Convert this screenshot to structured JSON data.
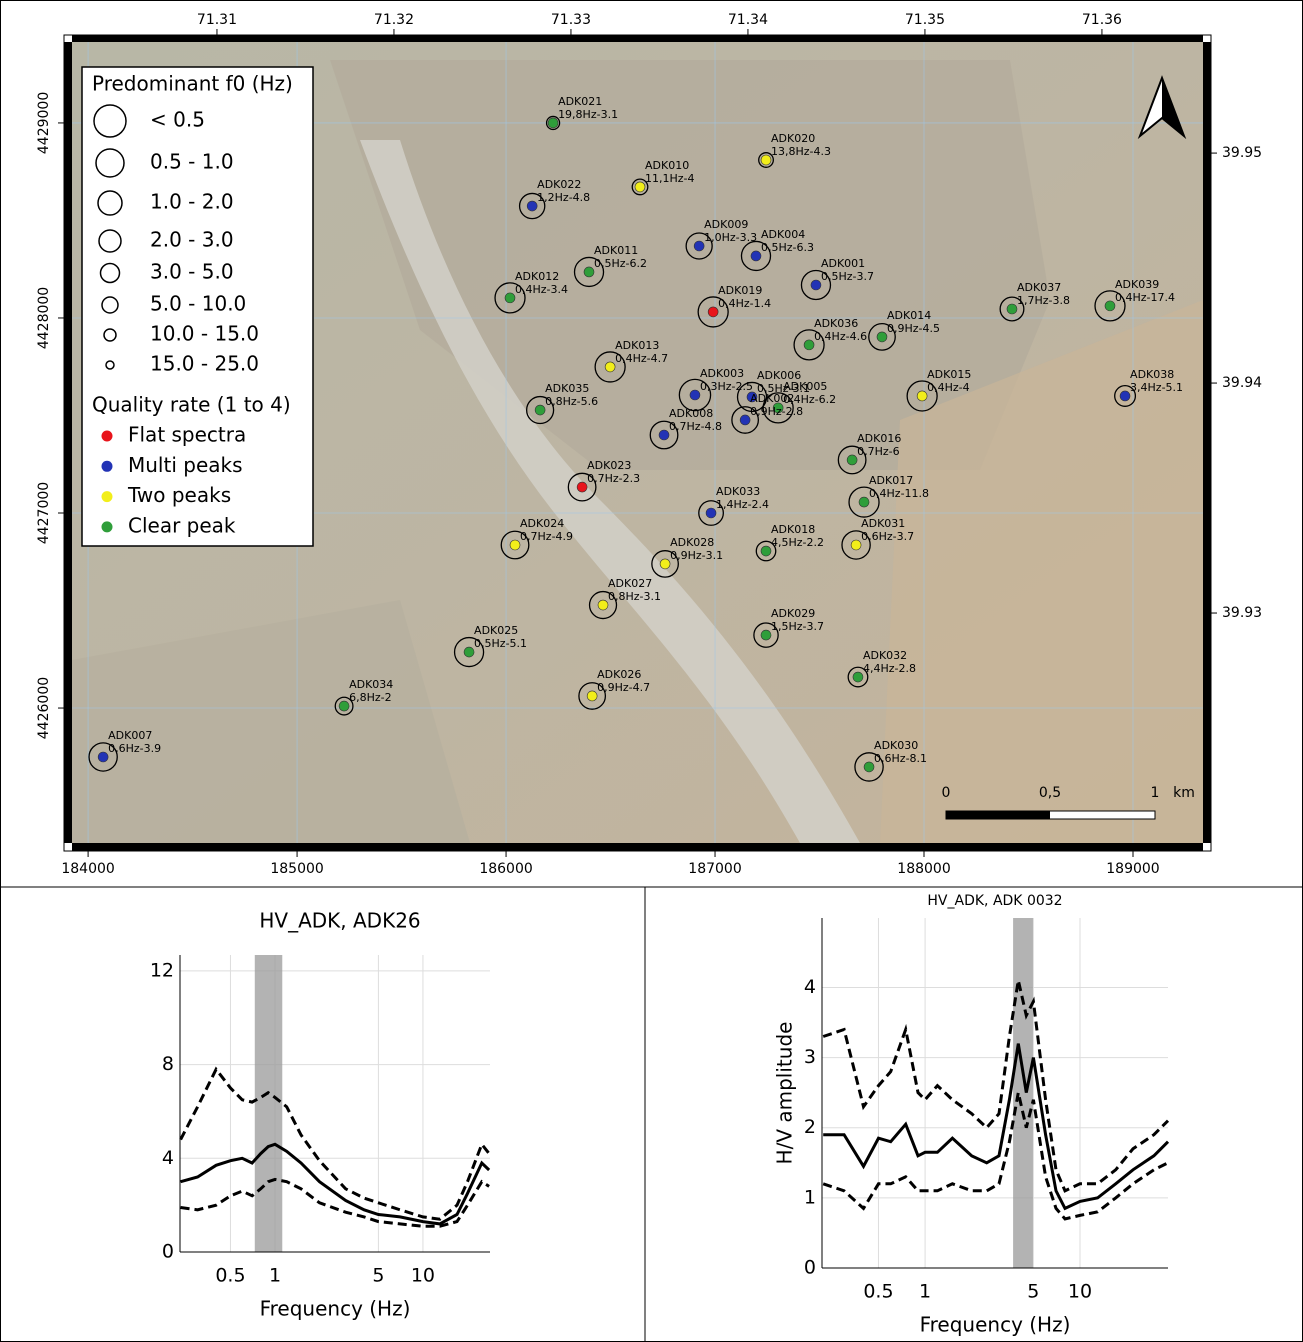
{
  "map": {
    "xlim": [
      183923,
      189335
    ],
    "ylim": [
      4425308,
      4429415
    ],
    "xticks": [
      184000,
      185000,
      186000,
      187000,
      188000,
      189000
    ],
    "yticks": [
      4426000,
      4427000,
      4428000,
      4429000
    ],
    "lonlim": [
      71.30181,
      71.36571
    ],
    "latlim": [
      39.92,
      39.95483
    ],
    "lonticks": [
      71.31,
      71.32,
      71.33,
      71.34,
      71.35,
      71.36
    ],
    "latticks": [
      39.93,
      39.94,
      39.95
    ],
    "legend": {
      "size_title": "Predominant f0 (Hz)",
      "size_classes": [
        "< 0.5",
        "0.5 - 1.0",
        "1.0 - 2.0",
        "2.0 - 3.0",
        "3.0 - 5.0",
        "5.0 - 10.0",
        "10.0 - 15.0",
        "15.0 - 25.0"
      ],
      "quality_title": "Quality rate (1 to 4)",
      "quality": [
        {
          "name": "Flat spectra",
          "color": "#e8141b"
        },
        {
          "name": "Multi peaks",
          "color": "#2233b5"
        },
        {
          "name": "Two peaks",
          "color": "#f2ee1a"
        },
        {
          "name": "Clear peak",
          "color": "#2f9e3a"
        }
      ]
    },
    "scalebar": [
      "0",
      "0,5",
      "1",
      "km"
    ],
    "stations": [
      {
        "name": "ADK021",
        "label": "19,8Hz-3.1",
        "f0": 19.8,
        "x": 186225,
        "y": 4429000,
        "color": "#2f9e3a"
      },
      {
        "name": "ADK020",
        "label": "13,8Hz-4.3",
        "f0": 13.8,
        "x": 187244,
        "y": 4428810,
        "color": "#f2ee1a"
      },
      {
        "name": "ADK010",
        "label": "11,1Hz-4",
        "f0": 11.1,
        "x": 186641,
        "y": 4428672,
        "color": "#f2ee1a"
      },
      {
        "name": "ADK022",
        "label": "1,2Hz-4.8",
        "f0": 1.2,
        "x": 186125,
        "y": 4428574,
        "color": "#2233b5"
      },
      {
        "name": "ADK009",
        "label": "1,0Hz-3.3",
        "f0": 1.0,
        "x": 186924,
        "y": 4428369,
        "color": "#2233b5"
      },
      {
        "name": "ADK004",
        "label": "0,5Hz-6.3",
        "f0": 0.5,
        "x": 187196,
        "y": 4428318,
        "color": "#2233b5"
      },
      {
        "name": "ADK011",
        "label": "0,5Hz-6.2",
        "f0": 0.5,
        "x": 186397,
        "y": 4428236,
        "color": "#2f9e3a"
      },
      {
        "name": "ADK001",
        "label": "0,5Hz-3.7",
        "f0": 0.5,
        "x": 187483,
        "y": 4428169,
        "color": "#2233b5"
      },
      {
        "name": "ADK012",
        "label": "0,4Hz-3.4",
        "f0": 0.4,
        "x": 186019,
        "y": 4428103,
        "color": "#2f9e3a"
      },
      {
        "name": "ADK019",
        "label": "0,4Hz-1.4",
        "f0": 0.4,
        "x": 186991,
        "y": 4428031,
        "color": "#e8141b"
      },
      {
        "name": "ADK037",
        "label": "1,7Hz-3.8",
        "f0": 1.7,
        "x": 188421,
        "y": 4428046,
        "color": "#2f9e3a"
      },
      {
        "name": "ADK039",
        "label": "0,4Hz-17.4",
        "f0": 0.4,
        "x": 188890,
        "y": 4428062,
        "color": "#2f9e3a"
      },
      {
        "name": "ADK014",
        "label": "0,9Hz-4.5",
        "f0": 0.9,
        "x": 187799,
        "y": 4427903,
        "color": "#2f9e3a"
      },
      {
        "name": "ADK036",
        "label": "0,4Hz-4.6",
        "f0": 0.4,
        "x": 187450,
        "y": 4427862,
        "color": "#2f9e3a"
      },
      {
        "name": "ADK013",
        "label": "0,4Hz-4.7",
        "f0": 0.4,
        "x": 186498,
        "y": 4427749,
        "color": "#f2ee1a"
      },
      {
        "name": "ADK038",
        "label": "3,4Hz-5.1",
        "f0": 3.4,
        "x": 188962,
        "y": 4427600,
        "color": "#2233b5"
      },
      {
        "name": "ADK003",
        "label": "0,3Hz-2.5",
        "f0": 0.3,
        "x": 186904,
        "y": 4427605,
        "color": "#2233b5"
      },
      {
        "name": "ADK006",
        "label": "0,5Hz-3.1",
        "f0": 0.5,
        "x": 187177,
        "y": 4427595,
        "color": "#2233b5"
      },
      {
        "name": "ADK005",
        "label": "0,4Hz-6.2",
        "f0": 0.4,
        "x": 187302,
        "y": 4427539,
        "color": "#2f9e3a"
      },
      {
        "name": "ADK015",
        "label": "0,4Hz-4",
        "f0": 0.4,
        "x": 187991,
        "y": 4427600,
        "color": "#f2ee1a"
      },
      {
        "name": "ADK035",
        "label": "0,8Hz-5.6",
        "f0": 0.8,
        "x": 186163,
        "y": 4427528,
        "color": "#2f9e3a"
      },
      {
        "name": "ADK008",
        "label": "0,7Hz-4.8",
        "f0": 0.7,
        "x": 186756,
        "y": 4427400,
        "color": "#2233b5"
      },
      {
        "name": "ADK002",
        "label": "0,9Hz-2.8",
        "f0": 0.9,
        "x": 187144,
        "y": 4427477,
        "color": "#2233b5"
      },
      {
        "name": "ADK016",
        "label": "0,7Hz-6",
        "f0": 0.7,
        "x": 187656,
        "y": 4427272,
        "color": "#2f9e3a"
      },
      {
        "name": "ADK023",
        "label": "0,7Hz-2.3",
        "f0": 0.7,
        "x": 186364,
        "y": 4427133,
        "color": "#e8141b"
      },
      {
        "name": "ADK017",
        "label": "0,4Hz-11.8",
        "f0": 0.4,
        "x": 187713,
        "y": 4427056,
        "color": "#2f9e3a"
      },
      {
        "name": "ADK033",
        "label": "1,4Hz-2.4",
        "f0": 1.4,
        "x": 186981,
        "y": 4427000,
        "color": "#2233b5"
      },
      {
        "name": "ADK024",
        "label": "0,7Hz-4.9",
        "f0": 0.7,
        "x": 186043,
        "y": 4426836,
        "color": "#f2ee1a"
      },
      {
        "name": "ADK018",
        "label": "4,5Hz-2.2",
        "f0": 4.5,
        "x": 187244,
        "y": 4426805,
        "color": "#2f9e3a"
      },
      {
        "name": "ADK031",
        "label": "0,6Hz-3.7",
        "f0": 0.6,
        "x": 187675,
        "y": 4426836,
        "color": "#f2ee1a"
      },
      {
        "name": "ADK028",
        "label": "0,9Hz-3.1",
        "f0": 0.9,
        "x": 186761,
        "y": 4426739,
        "color": "#f2ee1a"
      },
      {
        "name": "ADK027",
        "label": "0,8Hz-3.1",
        "f0": 0.8,
        "x": 186464,
        "y": 4426528,
        "color": "#f2ee1a"
      },
      {
        "name": "ADK029",
        "label": "1,5Hz-3.7",
        "f0": 1.5,
        "x": 187244,
        "y": 4426374,
        "color": "#2f9e3a"
      },
      {
        "name": "ADK025",
        "label": "0,5Hz-5.1",
        "f0": 0.5,
        "x": 185823,
        "y": 4426287,
        "color": "#2f9e3a"
      },
      {
        "name": "ADK032",
        "label": "4,4Hz-2.8",
        "f0": 4.4,
        "x": 187684,
        "y": 4426159,
        "color": "#2f9e3a"
      },
      {
        "name": "ADK026",
        "label": "0,9Hz-4.7",
        "f0": 0.9,
        "x": 186412,
        "y": 4426062,
        "color": "#f2ee1a"
      },
      {
        "name": "ADK034",
        "label": "6,8Hz-2",
        "f0": 6.8,
        "x": 185225,
        "y": 4426010,
        "color": "#2f9e3a"
      },
      {
        "name": "ADK007",
        "label": "0,6Hz-3.9",
        "f0": 0.6,
        "x": 184072,
        "y": 4425749,
        "color": "#2233b5"
      },
      {
        "name": "ADK030",
        "label": "0,6Hz-8.1",
        "f0": 0.6,
        "x": 187737,
        "y": 4425698,
        "color": "#2f9e3a"
      }
    ]
  },
  "panels": [
    {
      "title": "HV_ADK, ADK26",
      "xlabel": "Frequency (Hz)",
      "xlim": [
        0.228,
        28.4
      ],
      "ylim": [
        0,
        12.68
      ],
      "xticks": [
        0.5,
        1,
        5,
        10
      ],
      "yticks": [
        0,
        4,
        8,
        12
      ],
      "band": [
        0.73,
        1.12
      ],
      "freq": [
        0.23,
        0.3,
        0.4,
        0.5,
        0.6,
        0.7,
        0.8,
        0.9,
        1,
        1.2,
        1.5,
        2,
        3,
        4,
        5,
        7,
        10,
        13,
        17,
        20,
        25,
        28
      ],
      "mean": [
        3.0,
        3.2,
        3.7,
        3.9,
        4.0,
        3.8,
        4.2,
        4.5,
        4.6,
        4.3,
        3.8,
        3.0,
        2.2,
        1.8,
        1.6,
        1.5,
        1.3,
        1.2,
        1.6,
        2.5,
        3.8,
        3.5
      ],
      "upper": [
        4.8,
        6.2,
        7.8,
        7.0,
        6.5,
        6.4,
        6.6,
        6.8,
        6.6,
        6.2,
        5.0,
        3.9,
        2.7,
        2.3,
        2.1,
        1.8,
        1.5,
        1.4,
        2.0,
        3.0,
        4.6,
        4.2
      ],
      "lower": [
        1.9,
        1.8,
        2.0,
        2.4,
        2.6,
        2.4,
        2.7,
        3.0,
        3.1,
        3.0,
        2.7,
        2.1,
        1.7,
        1.5,
        1.3,
        1.2,
        1.1,
        1.1,
        1.3,
        2.0,
        3.0,
        2.8
      ]
    },
    {
      "title": "HV_ADK, ADK 0032",
      "xlabel": "Frequency (Hz)",
      "ylabel": "H/V amplitude",
      "xlim": [
        0.216,
        37
      ],
      "ylim": [
        0,
        4.99
      ],
      "xticks": [
        0.5,
        1,
        5,
        10
      ],
      "yticks": [
        0,
        1,
        2,
        3,
        4
      ],
      "band": [
        3.7,
        4.97
      ],
      "freq": [
        0.22,
        0.3,
        0.4,
        0.5,
        0.6,
        0.75,
        0.9,
        1,
        1.2,
        1.5,
        2,
        2.5,
        3,
        3.5,
        4,
        4.5,
        5,
        6,
        7,
        8,
        10,
        13,
        17,
        22,
        30,
        37
      ],
      "mean": [
        1.9,
        1.9,
        1.45,
        1.85,
        1.8,
        2.05,
        1.6,
        1.65,
        1.65,
        1.85,
        1.6,
        1.5,
        1.6,
        2.4,
        3.2,
        2.5,
        3.0,
        1.9,
        1.1,
        0.85,
        0.95,
        1.0,
        1.2,
        1.4,
        1.6,
        1.8
      ],
      "upper": [
        3.3,
        3.4,
        2.3,
        2.6,
        2.8,
        3.4,
        2.5,
        2.4,
        2.6,
        2.4,
        2.2,
        2.0,
        2.2,
        3.3,
        4.1,
        3.6,
        3.8,
        2.4,
        1.4,
        1.1,
        1.2,
        1.2,
        1.4,
        1.7,
        1.9,
        2.1
      ],
      "lower": [
        1.2,
        1.1,
        0.85,
        1.2,
        1.2,
        1.3,
        1.1,
        1.1,
        1.1,
        1.2,
        1.1,
        1.1,
        1.2,
        1.8,
        2.5,
        2.0,
        2.4,
        1.3,
        0.85,
        0.7,
        0.75,
        0.8,
        1.0,
        1.2,
        1.4,
        1.5
      ]
    }
  ]
}
